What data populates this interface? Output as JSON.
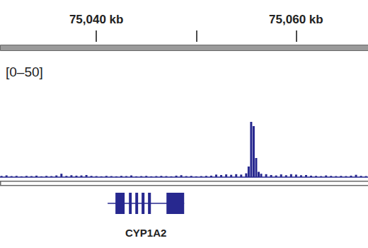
{
  "chart_data": {
    "type": "bar",
    "ylabel": "[0–50]",
    "color": "#27288f",
    "xlim": [
      75030.35,
      75067.2
    ],
    "ylim": [
      0,
      50
    ],
    "xticks": [
      {
        "value": 75040,
        "label": "75,040 kb"
      },
      {
        "value": 75050,
        "label": null
      },
      {
        "value": 75060,
        "label": "75,060 kb"
      }
    ],
    "tick_labels": "x",
    "x": [
      75030.5,
      75031,
      75031.5,
      75032,
      75032.5,
      75033,
      75033.5,
      75034,
      75034.5,
      75035,
      75035.5,
      75036,
      75036.5,
      75037,
      75037.5,
      75038,
      75038.5,
      75039,
      75039.5,
      75040,
      75040.5,
      75041,
      75041.5,
      75042,
      75042.5,
      75043,
      75043.5,
      75044,
      75044.5,
      75045,
      75045.5,
      75046,
      75046.5,
      75047,
      75047.5,
      75048,
      75048.5,
      75049,
      75049.5,
      75050,
      75050.5,
      75051,
      75051.5,
      75052,
      75052.5,
      75053,
      75053.5,
      75054,
      75054.5,
      75055,
      75055.25,
      75055.5,
      75055.75,
      75056,
      75056.25,
      75056.5,
      75057,
      75057.5,
      75058,
      75058.5,
      75059,
      75059.5,
      75060,
      75060.5,
      75061,
      75061.5,
      75062,
      75062.5,
      75063,
      75063.5,
      75064,
      75064.5,
      75065,
      75065.5,
      75066,
      75066.5,
      75067
    ],
    "values": [
      0.6,
      0.8,
      0.5,
      0.6,
      0.4,
      0.6,
      0.5,
      0.7,
      0.4,
      0.6,
      0.5,
      0.8,
      1.6,
      0.6,
      0.9,
      0.7,
      0.8,
      1.0,
      0.6,
      0.5,
      0.4,
      0.6,
      0.5,
      0.4,
      0.6,
      0.5,
      0.8,
      0.4,
      0.5,
      0.6,
      0.4,
      0.5,
      0.6,
      0.5,
      0.4,
      0.7,
      0.9,
      0.5,
      0.6,
      0.4,
      0.5,
      0.6,
      0.7,
      1.2,
      1.0,
      1.3,
      1.1,
      1.4,
      1.2,
      1.8,
      5,
      26,
      24,
      9,
      2.5,
      1.6,
      1.4,
      1.0,
      0.8,
      1.3,
      0.9,
      1.4,
      1.2,
      0.9,
      1.0,
      0.7,
      0.6,
      0.5,
      0.8,
      0.6,
      0.5,
      0.6,
      0.5,
      0.7,
      1.1,
      0.6,
      0.5
    ],
    "annotations": [
      {
        "text": "CYP1A2",
        "start": 75041.13,
        "end": 75048.79,
        "exons": [
          [
            75041.91,
            75042.83
          ],
          [
            75043.26,
            75043.54
          ],
          [
            75043.9,
            75044.18
          ],
          [
            75044.53,
            75044.82
          ],
          [
            75045.17,
            75045.46
          ],
          [
            75047.02,
            75048.79
          ]
        ]
      }
    ]
  }
}
